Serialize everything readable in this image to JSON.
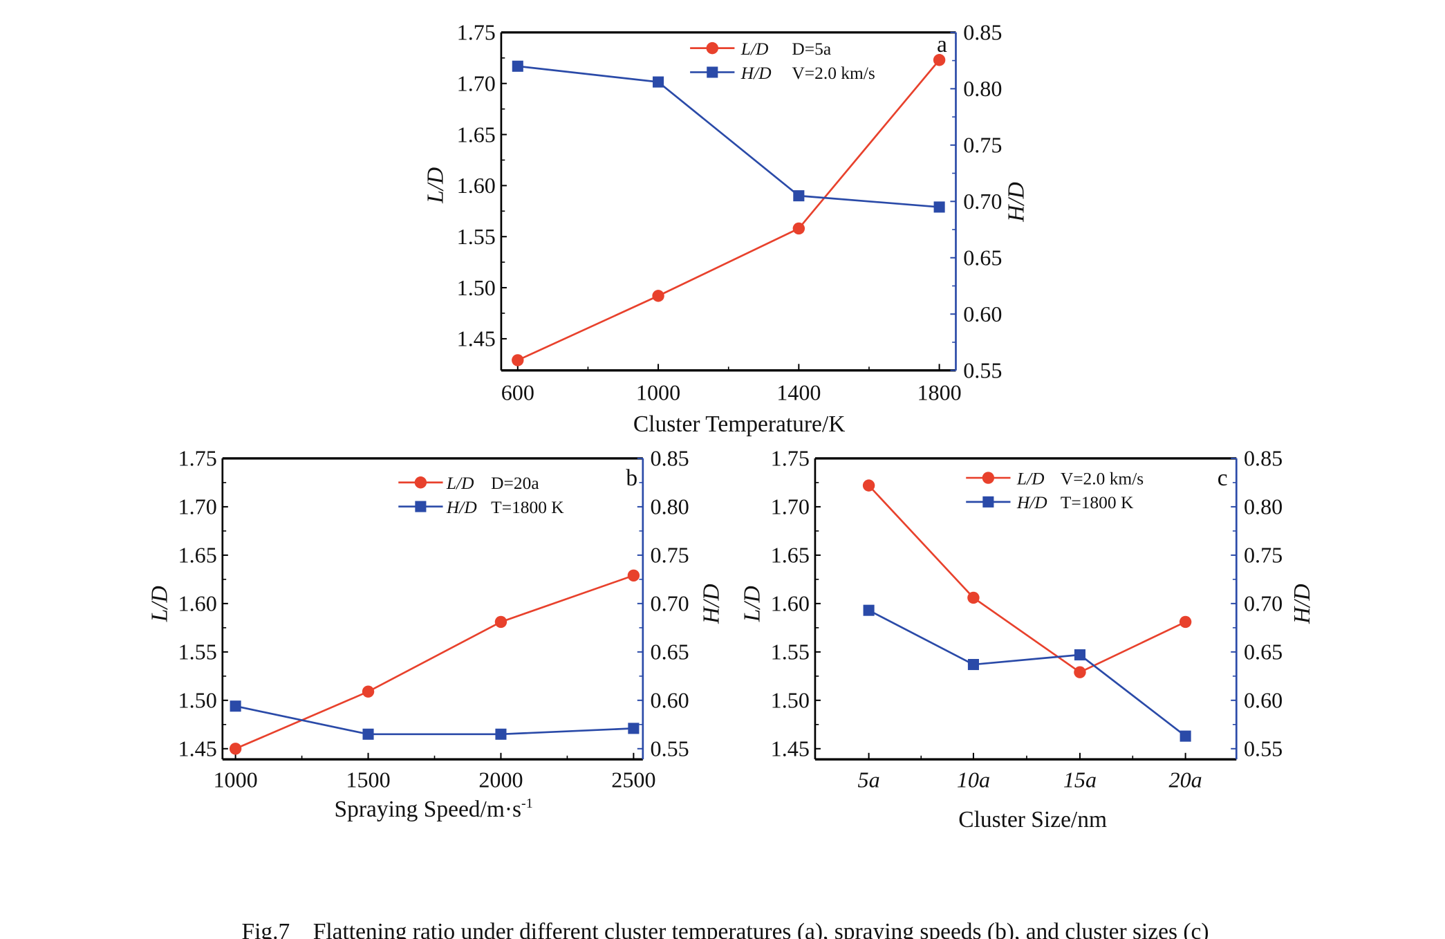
{
  "caption": "Fig.7    Flattening ratio under different cluster temperatures (a), spraying speeds (b), and cluster sizes (c)",
  "colors": {
    "ld": "#e8412c",
    "hd": "#2a4aa8",
    "axis": "#000000",
    "right_axis": "#2a4aa8"
  },
  "chart_data": [
    {
      "panel": "a",
      "type": "line",
      "xlabel": "Cluster Temperature/K",
      "ylabel": "L/D",
      "y2label": "H/D",
      "x": [
        600,
        1000,
        1400,
        1800
      ],
      "xticks": [
        600,
        1000,
        1400,
        1800
      ],
      "xlim": [
        553,
        1847
      ],
      "ylim": [
        1.419,
        1.75
      ],
      "y2lim": [
        0.55,
        0.85
      ],
      "yticks": [
        "1.45",
        "1.50",
        "1.55",
        "1.60",
        "1.65",
        "1.70",
        "1.75"
      ],
      "y2ticks": [
        "0.55",
        "0.60",
        "0.65",
        "0.70",
        "0.75",
        "0.80",
        "0.85"
      ],
      "series": [
        {
          "name": "L/D",
          "note": "D=5a",
          "axis": "left",
          "marker": "circle",
          "values": [
            1.429,
            1.492,
            1.558,
            1.723
          ]
        },
        {
          "name": "H/D",
          "note": "V=2.0 km/s",
          "axis": "right",
          "marker": "square",
          "values": [
            0.82,
            0.806,
            0.705,
            0.695
          ]
        }
      ],
      "legend": "top-center"
    },
    {
      "panel": "b",
      "type": "line",
      "xlabel": "Spraying Speed/m·s",
      "xlabel_sup": "-1",
      "ylabel": "L/D",
      "y2label": "H/D",
      "x": [
        1000,
        1500,
        2000,
        2500
      ],
      "xticks": [
        1000,
        1500,
        2000,
        2500
      ],
      "xlim": [
        951,
        2535
      ],
      "ylim": [
        1.439,
        1.75
      ],
      "y2lim": [
        0.539,
        0.85
      ],
      "yticks": [
        "1.45",
        "1.50",
        "1.55",
        "1.60",
        "1.65",
        "1.70",
        "1.75"
      ],
      "y2ticks": [
        "0.55",
        "0.60",
        "0.65",
        "0.70",
        "0.75",
        "0.80",
        "0.85"
      ],
      "series": [
        {
          "name": "L/D",
          "note": "D=20a",
          "axis": "left",
          "marker": "circle",
          "values": [
            1.45,
            1.509,
            1.581,
            1.629
          ]
        },
        {
          "name": "H/D",
          "note": "T=1800 K",
          "axis": "right",
          "marker": "square",
          "values": [
            0.594,
            0.565,
            0.565,
            0.571
          ]
        }
      ],
      "legend": "top-center"
    },
    {
      "panel": "c",
      "type": "line",
      "xlabel": "Cluster Size/nm",
      "ylabel": "L/D",
      "y2label": "H/D",
      "categories": [
        "5a",
        "10a",
        "15a",
        "20a"
      ],
      "ylim": [
        1.439,
        1.75
      ],
      "y2lim": [
        0.539,
        0.85
      ],
      "yticks": [
        "1.45",
        "1.50",
        "1.55",
        "1.60",
        "1.65",
        "1.70",
        "1.75"
      ],
      "y2ticks": [
        "0.55",
        "0.60",
        "0.65",
        "0.70",
        "0.75",
        "0.80",
        "0.85"
      ],
      "series": [
        {
          "name": "L/D",
          "note": "V=2.0 km/s",
          "axis": "left",
          "marker": "circle",
          "values": [
            1.722,
            1.606,
            1.529,
            1.581
          ]
        },
        {
          "name": "H/D",
          "note": "T=1800 K",
          "axis": "right",
          "marker": "square",
          "values": [
            0.693,
            0.637,
            0.647,
            0.563
          ]
        }
      ],
      "legend": "top-center"
    }
  ]
}
